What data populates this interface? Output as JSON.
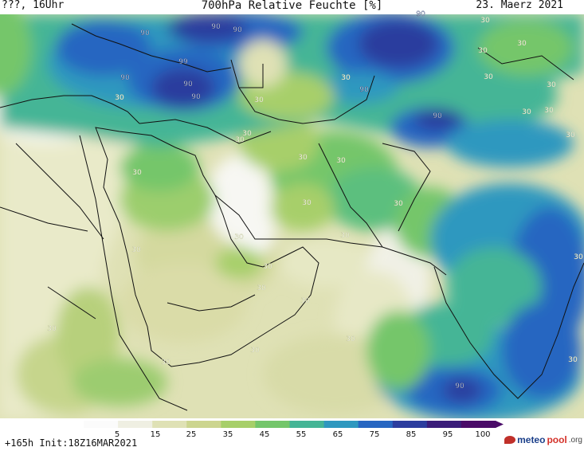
{
  "header": {
    "left": "???, 16Uhr",
    "title": "700hPa Relative Feuchte [%]",
    "date": "23. Maerz 2021"
  },
  "footer": {
    "run_info": "+165h  Init:18Z16MAR2021",
    "logo_main": "meteo",
    "logo_accent": "pool",
    "logo_suffix": ".org"
  },
  "colorbar": {
    "ticks": [
      "5",
      "15",
      "25",
      "35",
      "45",
      "55",
      "65",
      "75",
      "85",
      "95",
      "100"
    ],
    "colors": [
      "#fbfbfb",
      "#efefe2",
      "#dfe1b5",
      "#ccd58f",
      "#a7cf6a",
      "#74c66b",
      "#45b596",
      "#2f98bf",
      "#2766c1",
      "#2c3d9e",
      "#3b1d7a",
      "#4a0b68"
    ]
  },
  "contour_labels": [
    "90",
    "90",
    "90",
    "90",
    "90",
    "90",
    "90",
    "90",
    "90",
    "90",
    "99",
    "30",
    "30",
    "30",
    "30",
    "30",
    "30",
    "30",
    "30",
    "30",
    "30",
    "30",
    "30",
    "30",
    "30",
    "30",
    "30",
    "30",
    "30",
    "30",
    "30",
    "30",
    "30",
    "30",
    "30",
    "30",
    "30",
    "30",
    "30",
    "30",
    "30"
  ]
}
